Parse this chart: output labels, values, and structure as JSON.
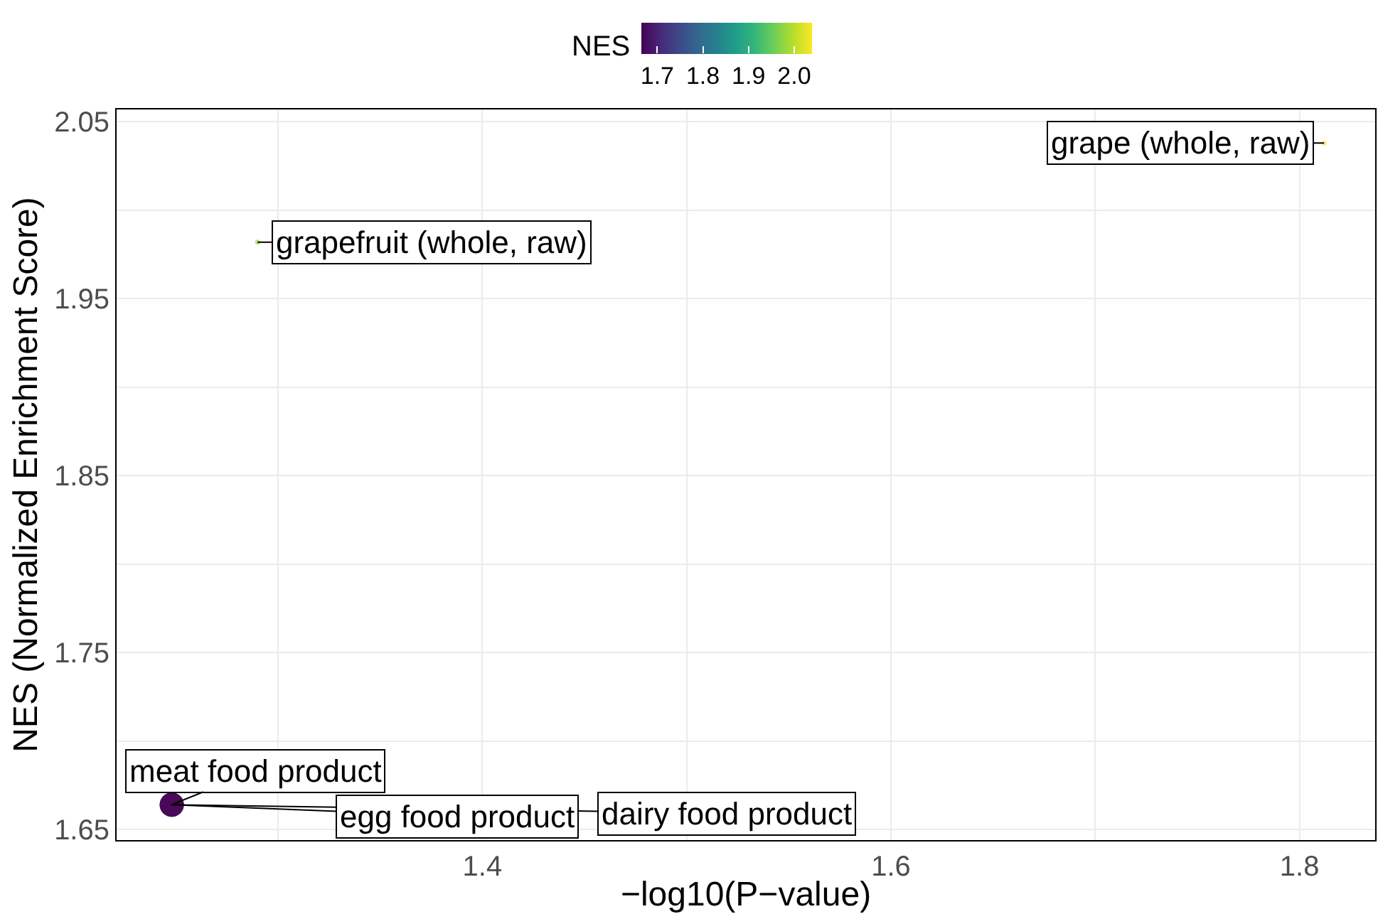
{
  "chart_data": {
    "type": "bubble",
    "xlabel": "−log10(P−value)",
    "ylabel": "NES (Normalized Enrichment Score)",
    "clabel": "NES",
    "x": [
      1.248,
      1.248,
      1.248,
      1.29,
      1.812
    ],
    "values": [
      1.664,
      1.664,
      1.664,
      1.982,
      2.038
    ],
    "cvalues": [
      1.664,
      1.664,
      1.664,
      1.982,
      2.038
    ],
    "sizes": [
      1,
      1,
      1,
      0.04,
      0.04
    ],
    "clim": [
      1.664,
      2.038
    ],
    "cticks": [
      1.7,
      1.8,
      1.9,
      {
        "value": 2,
        "label": "2.0"
      }
    ],
    "xlim": [
      1.221,
      1.837
    ],
    "ylim": [
      1.644,
      2.057
    ],
    "xticks": [
      {
        "value": 1.3,
        "label": null
      },
      1.4,
      {
        "value": 1.5,
        "label": null
      },
      1.6,
      {
        "value": 1.7,
        "label": null
      },
      1.8
    ],
    "yticks": [
      1.65,
      {
        "value": 1.7,
        "label": null
      },
      1.75,
      {
        "value": 1.8,
        "label": null
      },
      1.85,
      {
        "value": 1.9,
        "label": null
      },
      1.95,
      {
        "value": 2.0,
        "label": null
      },
      2.05
    ],
    "annotations": [
      {
        "text": "meat food product",
        "x": 1.248,
        "y": 1.664
      },
      {
        "text": "egg food product",
        "x": 1.248,
        "y": 1.664
      },
      {
        "text": "dairy food product",
        "x": 1.248,
        "y": 1.664
      },
      {
        "text": "grapefruit (whole, raw)",
        "x": 1.29,
        "y": 1.982
      },
      {
        "text": "grape (whole, raw)",
        "x": 1.812,
        "y": 2.038
      }
    ],
    "grid": true,
    "marker": "circle"
  }
}
